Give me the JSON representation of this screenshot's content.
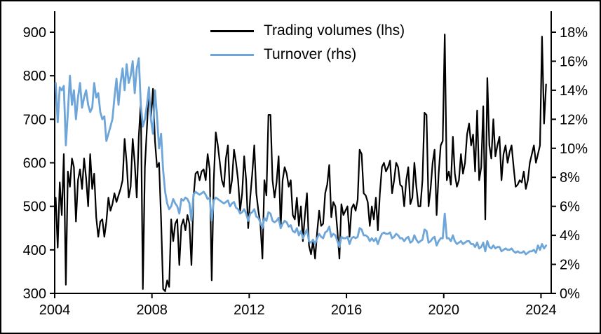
{
  "chart_data": {
    "type": "line",
    "title": "",
    "xlabel": "",
    "ylabel_left": "",
    "ylabel_right": "",
    "grid": false,
    "legend": {
      "position": "top-center",
      "entries": [
        "Trading volumes (lhs)",
        "Turnover (rhs)"
      ]
    },
    "x_axis": {
      "range": [
        2004,
        2024.42
      ],
      "tick_values": [
        2004,
        2008,
        2012,
        2016,
        2020,
        2024
      ],
      "tick_labels": [
        "2004",
        "2008",
        "2012",
        "2016",
        "2020",
        "2024"
      ]
    },
    "left_axis": {
      "range": [
        300,
        900
      ],
      "tick_values": [
        300,
        400,
        500,
        600,
        700,
        800,
        900
      ],
      "tick_labels": [
        "300",
        "400",
        "500",
        "600",
        "700",
        "800",
        "900"
      ]
    },
    "right_axis": {
      "range": [
        0,
        18
      ],
      "tick_values": [
        0,
        2,
        4,
        6,
        8,
        10,
        12,
        14,
        16,
        18
      ],
      "tick_labels": [
        "0%",
        "2%",
        "4%",
        "6%",
        "8%",
        "10%",
        "12%",
        "14%",
        "16%",
        "18%"
      ]
    },
    "frequency": "monthly",
    "x_start_year": 2004,
    "series": [
      {
        "name": "Trading volumes (lhs)",
        "axis": "left",
        "color": "#000000",
        "stroke_width": 2.2,
        "values": [
          520,
          405,
          555,
          480,
          620,
          320,
          580,
          545,
          610,
          590,
          465,
          560,
          585,
          540,
          610,
          565,
          500,
          620,
          540,
          575,
          475,
          430,
          465,
          470,
          430,
          465,
          520,
          490,
          505,
          530,
          510,
          525,
          540,
          560,
          655,
          600,
          520,
          545,
          655,
          600,
          520,
          660,
          740,
          310,
          590,
          680,
          770,
          700,
          770,
          650,
          590,
          600,
          470,
          310,
          305,
          330,
          315,
          470,
          420,
          460,
          470,
          365,
          455,
          470,
          445,
          480,
          460,
          365,
          520,
          575,
          580,
          560,
          580,
          585,
          560,
          620,
          585,
          330,
          560,
          670,
          640,
          600,
          560,
          545,
          610,
          640,
          530,
          560,
          630,
          600,
          560,
          490,
          530,
          615,
          560,
          450,
          520,
          575,
          640,
          530,
          490,
          460,
          380,
          560,
          525,
          710,
          710,
          560,
          520,
          555,
          615,
          450,
          560,
          590,
          575,
          545,
          560,
          480,
          470,
          520,
          455,
          500,
          420,
          480,
          530,
          410,
          390,
          420,
          380,
          440,
          490,
          455,
          460,
          530,
          550,
          595,
          475,
          510,
          500,
          445,
          380,
          505,
          480,
          490,
          500,
          430,
          495,
          505,
          490,
          515,
          630,
          620,
          530,
          525,
          510,
          455,
          500,
          470,
          520,
          445,
          530,
          590,
          600,
          580,
          590,
          605,
          530,
          560,
          600,
          590,
          550,
          545,
          500,
          560,
          590,
          505,
          520,
          600,
          545,
          500,
          500,
          560,
          715,
          710,
          500,
          540,
          600,
          630,
          480,
          575,
          640,
          650,
          895,
          560,
          580,
          550,
          660,
          575,
          545,
          560,
          620,
          575,
          600,
          665,
          690,
          640,
          665,
          580,
          720,
          560,
          590,
          730,
          470,
          795,
          640,
          610,
          700,
          615,
          640,
          660,
          560,
          620,
          640,
          600,
          625,
          640,
          590,
          545,
          550,
          560,
          555,
          580,
          540,
          560,
          600,
          620,
          640,
          600,
          620,
          640,
          890,
          690,
          780
        ]
      },
      {
        "name": "Turnover (rhs)",
        "axis": "right",
        "color": "#6EA6D9",
        "stroke_width": 2.8,
        "values": [
          14.5,
          11.8,
          14.2,
          14.0,
          14.3,
          10.2,
          12.5,
          15.0,
          13.0,
          14.0,
          12.0,
          13.5,
          14.5,
          12.8,
          13.5,
          14.0,
          13.0,
          12.5,
          12.8,
          14.5,
          13.5,
          13.8,
          12.5,
          12.0,
          12.2,
          10.5,
          11.0,
          11.5,
          12.0,
          13.5,
          14.8,
          13.0,
          14.5,
          15.5,
          14.0,
          15.8,
          14.5,
          15.0,
          16.0,
          13.8,
          15.5,
          16.2,
          13.0,
          11.5,
          12.0,
          13.0,
          14.2,
          12.0,
          11.0,
          14.0,
          12.2,
          10.0,
          11.0,
          8.5,
          7.0,
          6.2,
          5.8,
          6.0,
          6.5,
          6.2,
          6.0,
          5.5,
          6.5,
          6.4,
          6.6,
          6.5,
          6.2,
          5.0,
          6.8,
          7.0,
          6.9,
          6.8,
          6.9,
          7.0,
          6.8,
          6.5,
          6.6,
          5.0,
          6.4,
          6.6,
          6.5,
          6.4,
          6.3,
          6.2,
          6.3,
          6.4,
          6.0,
          6.2,
          6.3,
          5.9,
          5.8,
          5.5,
          5.6,
          5.8,
          5.5,
          5.0,
          5.5,
          5.6,
          5.8,
          5.3,
          5.2,
          4.9,
          4.5,
          5.2,
          5.0,
          5.6,
          5.5,
          5.0,
          4.9,
          5.0,
          5.2,
          4.5,
          4.8,
          5.0,
          4.9,
          4.6,
          4.7,
          4.3,
          4.2,
          4.5,
          4.0,
          4.3,
          3.8,
          4.1,
          4.4,
          3.6,
          3.5,
          3.7,
          3.4,
          3.8,
          4.1,
          3.9,
          3.8,
          4.2,
          4.3,
          4.6,
          3.9,
          4.1,
          4.0,
          3.6,
          3.2,
          3.9,
          3.8,
          3.8,
          3.9,
          3.4,
          3.8,
          3.9,
          3.8,
          3.9,
          4.5,
          4.4,
          4.0,
          4.0,
          3.9,
          3.6,
          3.8,
          3.6,
          3.8,
          3.4,
          3.8,
          4.1,
          4.2,
          4.1,
          4.1,
          4.2,
          3.8,
          3.9,
          4.1,
          4.0,
          3.8,
          3.8,
          3.6,
          3.8,
          3.9,
          3.5,
          3.6,
          4.0,
          3.7,
          3.5,
          3.6,
          3.7,
          4.4,
          4.3,
          3.5,
          3.6,
          3.8,
          3.9,
          3.3,
          3.6,
          3.8,
          3.8,
          5.5,
          3.8,
          3.8,
          3.6,
          4.0,
          3.6,
          3.4,
          3.5,
          3.6,
          3.4,
          3.5,
          3.6,
          3.6,
          3.4,
          3.4,
          3.2,
          3.5,
          3.1,
          3.2,
          3.5,
          2.9,
          3.6,
          3.2,
          3.1,
          3.3,
          3.1,
          3.2,
          3.2,
          2.9,
          3.0,
          3.1,
          3.0,
          3.0,
          3.1,
          2.9,
          2.8,
          2.9,
          2.8,
          2.8,
          2.9,
          2.7,
          2.8,
          2.9,
          2.9,
          3.0,
          2.8,
          3.3,
          3.0,
          3.4,
          3.1,
          3.3
        ]
      }
    ]
  }
}
